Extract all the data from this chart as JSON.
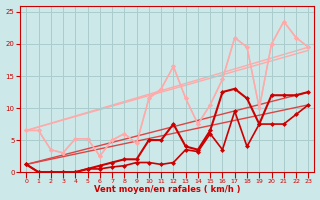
{
  "bg_color": "#cce8e8",
  "grid_color": "#aacccc",
  "xlabel": "Vent moyen/en rafales ( km/h )",
  "xlabel_color": "#cc0000",
  "tick_color": "#cc0000",
  "xlim": [
    -0.5,
    23.5
  ],
  "ylim": [
    0,
    26
  ],
  "xticks": [
    0,
    1,
    2,
    3,
    4,
    5,
    6,
    7,
    8,
    9,
    10,
    11,
    12,
    13,
    14,
    15,
    16,
    17,
    18,
    19,
    20,
    21,
    22,
    23
  ],
  "yticks": [
    0,
    5,
    10,
    15,
    20,
    25
  ],
  "series_light_trend1": {
    "x": [
      0,
      23
    ],
    "y": [
      6.5,
      19.5
    ],
    "color": "#ffaaaa",
    "lw": 1.0
  },
  "series_light_trend2": {
    "x": [
      0,
      23
    ],
    "y": [
      6.5,
      19.0
    ],
    "color": "#ffaaaa",
    "lw": 1.0
  },
  "series_dark_trend1": {
    "x": [
      0,
      23
    ],
    "y": [
      1.2,
      10.5
    ],
    "color": "#dd4444",
    "lw": 1.0
  },
  "series_dark_trend2": {
    "x": [
      0,
      23
    ],
    "y": [
      1.2,
      12.5
    ],
    "color": "#dd4444",
    "lw": 1.0
  },
  "series_light1": {
    "x": [
      0,
      1,
      2,
      3,
      4,
      5,
      6,
      7,
      8,
      9,
      10,
      11,
      12,
      13,
      14,
      15,
      16,
      17,
      18,
      19,
      20,
      21,
      22,
      23
    ],
    "y": [
      6.5,
      6.5,
      3.5,
      3.0,
      5.2,
      5.2,
      2.5,
      5.0,
      6.0,
      4.5,
      11.5,
      13.0,
      16.5,
      11.5,
      7.5,
      10.5,
      14.5,
      21.0,
      19.5,
      10.0,
      20.0,
      23.5,
      21.0,
      19.5
    ],
    "color": "#ffaaaa",
    "lw": 1.0,
    "marker": "D",
    "ms": 2.0
  },
  "series_light2": {
    "x": [
      0,
      1,
      2,
      3,
      4,
      5,
      6,
      7,
      8,
      9,
      10,
      11,
      12,
      13,
      14,
      15,
      16,
      17,
      18,
      19,
      20,
      21,
      22,
      23
    ],
    "y": [
      6.5,
      6.5,
      3.5,
      3.0,
      5.2,
      5.2,
      2.5,
      5.0,
      6.0,
      4.5,
      11.5,
      13.0,
      16.5,
      11.5,
      7.5,
      10.5,
      14.5,
      21.0,
      19.5,
      10.0,
      20.0,
      23.5,
      21.0,
      19.5
    ],
    "color": "#ffaaaa",
    "lw": 1.0,
    "marker": "D",
    "ms": 2.0
  },
  "series_dark1": {
    "x": [
      0,
      1,
      2,
      3,
      4,
      5,
      6,
      7,
      8,
      9,
      10,
      11,
      12,
      13,
      14,
      15,
      16,
      17,
      18,
      19,
      20,
      21,
      22,
      23
    ],
    "y": [
      1.2,
      0.0,
      0.0,
      0.0,
      0.0,
      0.5,
      0.5,
      0.8,
      1.0,
      1.5,
      1.5,
      1.2,
      1.5,
      3.5,
      3.2,
      6.0,
      3.5,
      9.5,
      4.0,
      7.5,
      7.5,
      7.5,
      9.0,
      10.5
    ],
    "color": "#cc0000",
    "lw": 1.2,
    "marker": "D",
    "ms": 2.0
  },
  "series_dark2": {
    "x": [
      0,
      1,
      2,
      3,
      4,
      5,
      6,
      7,
      8,
      9,
      10,
      11,
      12,
      13,
      14,
      15,
      16,
      17,
      18,
      19,
      20,
      21,
      22,
      23
    ],
    "y": [
      1.2,
      0.0,
      0.0,
      0.0,
      0.0,
      0.5,
      1.0,
      1.5,
      2.0,
      2.0,
      5.0,
      5.0,
      7.5,
      4.0,
      3.5,
      6.5,
      12.5,
      13.0,
      11.5,
      7.5,
      12.0,
      12.0,
      12.0,
      12.5
    ],
    "color": "#cc0000",
    "lw": 1.5,
    "marker": "D",
    "ms": 2.0
  }
}
